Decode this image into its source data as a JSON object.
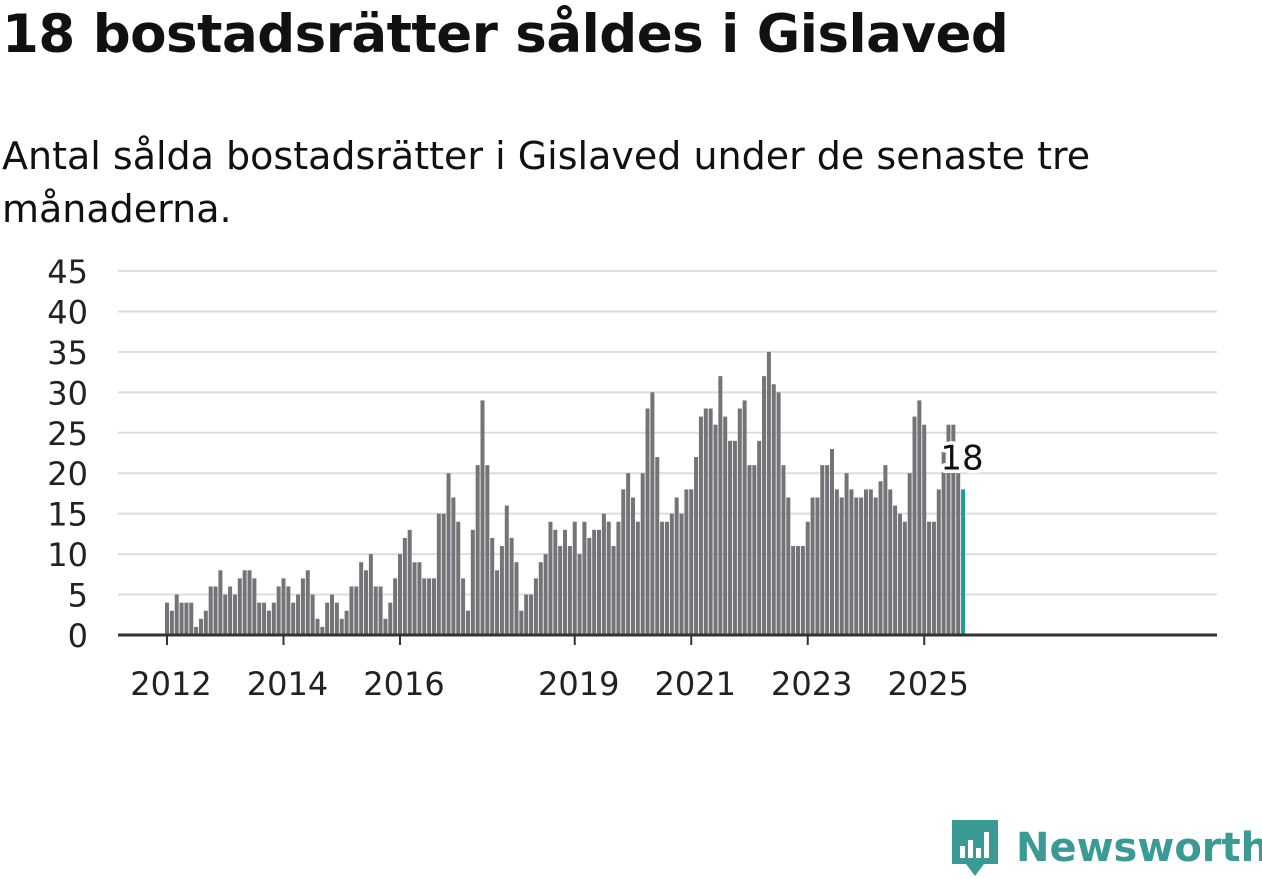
{
  "title": "18 bostadsrätter såldes i Gislaved",
  "subtitle": "Antal sålda bostadsrätter i Gislaved under de senaste tre månaderna.",
  "brand": {
    "name": "Newsworthy",
    "color": "#3a9a94",
    "icon": "newsworthy-logo-icon"
  },
  "colors": {
    "bar": "#737378",
    "highlight": "#1f9b96",
    "grid": "#dddddd",
    "axis": "#333333",
    "text": "#222222"
  },
  "chart_data": {
    "type": "bar",
    "x_start": "2012-01",
    "x_interval": "month",
    "ylim": [
      0,
      45
    ],
    "yticks": [
      0,
      5,
      10,
      15,
      20,
      25,
      30,
      35,
      40,
      45
    ],
    "xticks": [
      "2012",
      "2014",
      "2016",
      "2019",
      "2021",
      "2023",
      "2025"
    ],
    "xlabel": "",
    "ylabel": "",
    "grid": true,
    "highlight_label": "18",
    "values": [
      4,
      3,
      5,
      4,
      4,
      4,
      1,
      2,
      3,
      6,
      6,
      8,
      5,
      6,
      5,
      7,
      8,
      8,
      7,
      4,
      4,
      3,
      4,
      6,
      7,
      6,
      4,
      5,
      7,
      8,
      5,
      2,
      1,
      4,
      5,
      4,
      2,
      3,
      6,
      6,
      9,
      8,
      10,
      6,
      6,
      2,
      4,
      7,
      10,
      12,
      13,
      9,
      9,
      7,
      7,
      7,
      15,
      15,
      20,
      17,
      14,
      7,
      3,
      13,
      21,
      29,
      21,
      12,
      8,
      11,
      16,
      12,
      9,
      3,
      5,
      5,
      7,
      9,
      10,
      14,
      13,
      11,
      13,
      11,
      14,
      10,
      14,
      12,
      13,
      13,
      15,
      14,
      11,
      14,
      18,
      20,
      17,
      14,
      20,
      28,
      30,
      22,
      14,
      14,
      15,
      17,
      15,
      18,
      18,
      22,
      27,
      28,
      28,
      26,
      32,
      27,
      24,
      24,
      28,
      29,
      21,
      21,
      24,
      32,
      35,
      31,
      30,
      21,
      17,
      11,
      11,
      11,
      14,
      17,
      17,
      21,
      21,
      23,
      18,
      17,
      20,
      18,
      17,
      17,
      18,
      18,
      17,
      19,
      21,
      18,
      16,
      15,
      14,
      20,
      27,
      29,
      26,
      14,
      14,
      18,
      23,
      26,
      26,
      20,
      18
    ]
  }
}
